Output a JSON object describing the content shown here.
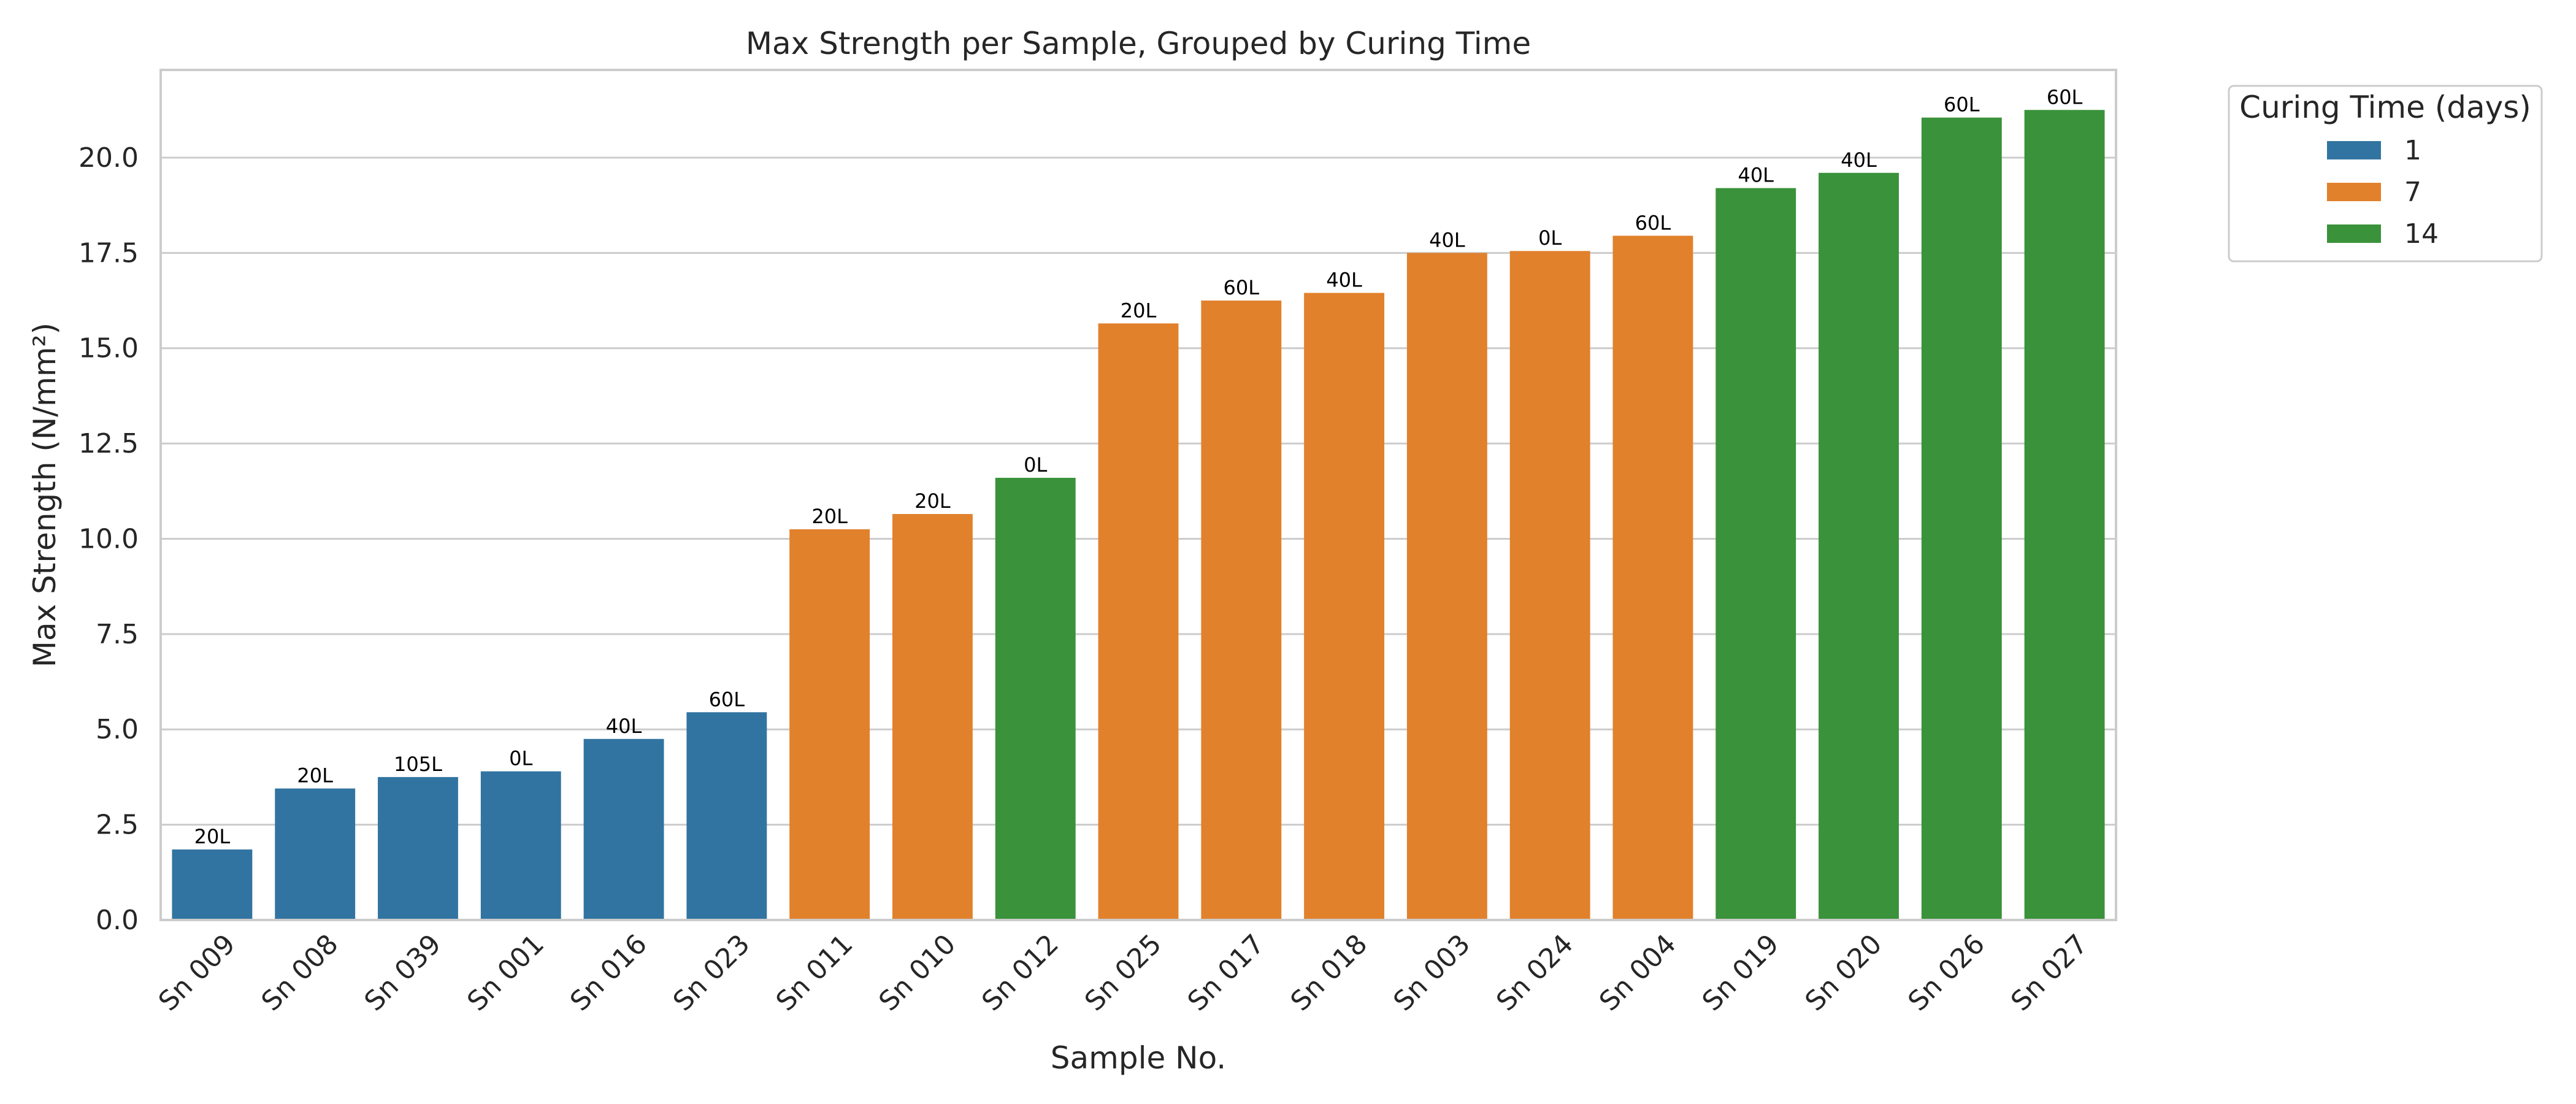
{
  "chart_data": {
    "type": "bar",
    "title": "Max Strength per Sample, Grouped by Curing Time",
    "xlabel": "Sample No.",
    "ylabel": "Max Strength (N/mm²)",
    "ylim": [
      0,
      22.3
    ],
    "yticks": [
      "0.0",
      "2.5",
      "5.0",
      "7.5",
      "10.0",
      "12.5",
      "15.0",
      "17.5",
      "20.0"
    ],
    "grid": "horizontal",
    "categories": [
      "Sn 009",
      "Sn 008",
      "Sn 039",
      "Sn 001",
      "Sn 016",
      "Sn 023",
      "Sn 011",
      "Sn 010",
      "Sn 012",
      "Sn 025",
      "Sn 017",
      "Sn 018",
      "Sn 003",
      "Sn 024",
      "Sn 004",
      "Sn 019",
      "Sn 020",
      "Sn 026",
      "Sn 027"
    ],
    "values": [
      1.85,
      3.45,
      3.75,
      3.9,
      4.75,
      5.45,
      10.25,
      10.65,
      11.6,
      15.65,
      16.25,
      16.45,
      17.5,
      17.55,
      17.95,
      19.2,
      19.6,
      21.05,
      21.25
    ],
    "bar_labels": [
      "20L",
      "20L",
      "105L",
      "0L",
      "40L",
      "60L",
      "20L",
      "20L",
      "0L",
      "20L",
      "60L",
      "40L",
      "40L",
      "0L",
      "60L",
      "40L",
      "40L",
      "60L",
      "60L"
    ],
    "group": [
      "1",
      "1",
      "1",
      "1",
      "1",
      "1",
      "7",
      "7",
      "14",
      "7",
      "7",
      "7",
      "7",
      "7",
      "7",
      "14",
      "14",
      "14",
      "14"
    ],
    "legend": {
      "title": "Curing Time (days)",
      "placement": "outside-top-right",
      "entries": [
        {
          "label": "1",
          "color": "#3274a1"
        },
        {
          "label": "7",
          "color": "#e1812c"
        },
        {
          "label": "14",
          "color": "#3a923a"
        }
      ]
    }
  }
}
